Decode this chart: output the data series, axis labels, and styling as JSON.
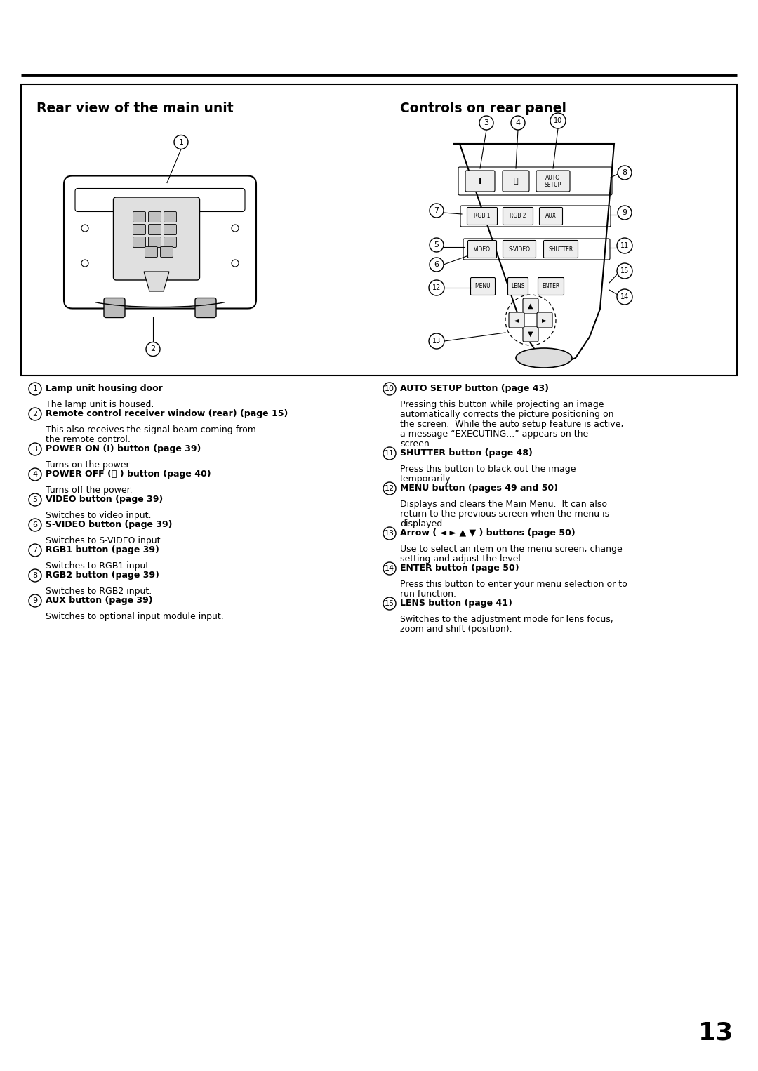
{
  "page_bg": "#ffffff",
  "title_left": "Rear view of the main unit",
  "title_right": "Controls on rear panel",
  "page_number": "13",
  "items_left": [
    {
      "num": "1",
      "bold": "Lamp unit housing door",
      "text": "The lamp unit is housed."
    },
    {
      "num": "2",
      "bold": "Remote control receiver window (rear) (page 15)",
      "text": "This also receives the signal beam coming from\nthe remote control."
    },
    {
      "num": "3",
      "bold": "POWER ON (I) button (page 39)",
      "text": "Turns on the power."
    },
    {
      "num": "4",
      "bold": "POWER OFF (⏻ ) button (page 40)",
      "text": "Turns off the power."
    },
    {
      "num": "5",
      "bold": "VIDEO button (page 39)",
      "text": "Switches to video input."
    },
    {
      "num": "6",
      "bold": "S-VIDEO button (page 39)",
      "text": "Switches to S-VIDEO input."
    },
    {
      "num": "7",
      "bold": "RGB1 button (page 39)",
      "text": "Switches to RGB1 input."
    },
    {
      "num": "8",
      "bold": "RGB2 button (page 39)",
      "text": "Switches to RGB2 input."
    },
    {
      "num": "9",
      "bold": "AUX button (page 39)",
      "text": "Switches to optional input module input."
    }
  ],
  "items_right": [
    {
      "num": "10",
      "bold": "AUTO SETUP button (page 43)",
      "text": "Pressing this button while projecting an image\nautomatically corrects the picture positioning on\nthe screen.  While the auto setup feature is active,\na message “EXECUTING...” appears on the\nscreen."
    },
    {
      "num": "11",
      "bold": "SHUTTER button (page 48)",
      "text": "Press this button to black out the image\ntemporarily."
    },
    {
      "num": "12",
      "bold": "MENU button (pages 49 and 50)",
      "text": "Displays and clears the Main Menu.  It can also\nreturn to the previous screen when the menu is\ndisplayed."
    },
    {
      "num": "13",
      "bold": "Arrow ( ◄ ► ▲ ▼ ) buttons (page 50)",
      "text": "Use to select an item on the menu screen, change\nsetting and adjust the level."
    },
    {
      "num": "14",
      "bold": "ENTER button (page 50)",
      "text": "Press this button to enter your menu selection or to\nrun function."
    },
    {
      "num": "15",
      "bold": "LENS button (page 41)",
      "text": "Switches to the adjustment mode for lens focus,\nzoom and shift (position)."
    }
  ]
}
